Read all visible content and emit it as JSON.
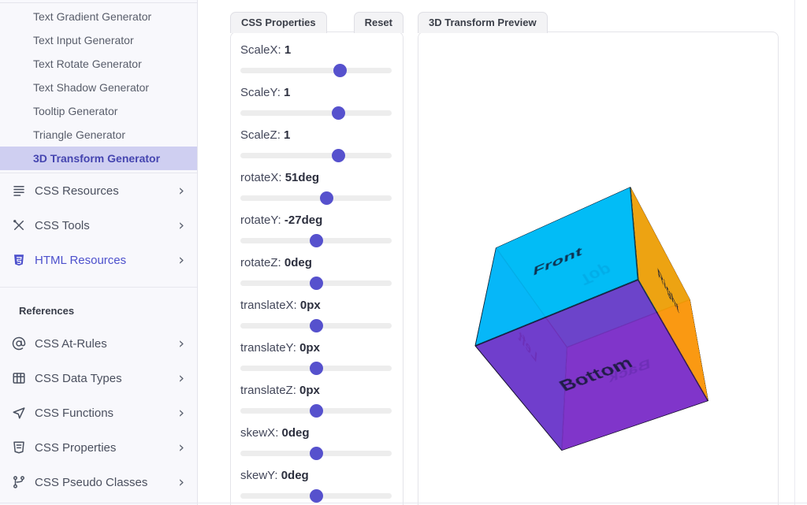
{
  "sidebar": {
    "top_links": [
      {
        "label": "Text Gradient Generator",
        "active": false
      },
      {
        "label": "Text Input Generator",
        "active": false
      },
      {
        "label": "Text Rotate Generator",
        "active": false
      },
      {
        "label": "Text Shadow Generator",
        "active": false
      },
      {
        "label": "Tooltip Generator",
        "active": false
      },
      {
        "label": "Triangle Generator",
        "active": false
      },
      {
        "label": "3D Transform Generator",
        "active": true
      }
    ],
    "categories": [
      {
        "label": "CSS Resources",
        "icon": "list-lines-icon",
        "accent": false
      },
      {
        "label": "CSS Tools",
        "icon": "tools-icon",
        "accent": false
      },
      {
        "label": "HTML Resources",
        "icon": "html5-shield-icon",
        "accent": true
      }
    ],
    "references_heading": "References",
    "references": [
      {
        "label": "CSS At-Rules",
        "icon": "at-sign-icon"
      },
      {
        "label": "CSS Data Types",
        "icon": "table-grid-icon"
      },
      {
        "label": "CSS Functions",
        "icon": "function-arrow-icon"
      },
      {
        "label": "CSS Properties",
        "icon": "css-shield-icon"
      },
      {
        "label": "CSS Pseudo Classes",
        "icon": "branch-icon"
      }
    ],
    "chevron": "›"
  },
  "properties_panel": {
    "tab_label": "CSS Properties",
    "reset_label": "Reset",
    "sliders": [
      {
        "name": "ScaleX",
        "value": "1",
        "percent": 66
      },
      {
        "name": "ScaleY",
        "value": "1",
        "percent": 65
      },
      {
        "name": "ScaleZ",
        "value": "1",
        "percent": 65
      },
      {
        "name": "rotateX",
        "value": "51deg",
        "percent": 57
      },
      {
        "name": "rotateY",
        "value": "-27deg",
        "percent": 50
      },
      {
        "name": "rotateZ",
        "value": "0deg",
        "percent": 50
      },
      {
        "name": "translateX",
        "value": "0px",
        "percent": 50
      },
      {
        "name": "translateY",
        "value": "0px",
        "percent": 50
      },
      {
        "name": "translateZ",
        "value": "0px",
        "percent": 50
      },
      {
        "name": "skewX",
        "value": "0deg",
        "percent": 50
      },
      {
        "name": "skewY",
        "value": "0deg",
        "percent": 50
      }
    ]
  },
  "preview_panel": {
    "tab_label": "3D Transform Preview",
    "transform": "rotateX(51deg) rotateY(-27deg)",
    "faces": [
      {
        "label": "Front",
        "position": "front",
        "color": "rgba(0,185,248,0.9)"
      },
      {
        "label": "Back",
        "position": "back",
        "color": "rgba(178,70,220,0.9)"
      },
      {
        "label": "Right",
        "position": "right",
        "color": "rgba(255,158,0,0.92)"
      },
      {
        "label": "Left",
        "position": "left",
        "color": "rgba(33,150,243,0.9)"
      },
      {
        "label": "Top",
        "position": "top",
        "color": "rgba(0,210,220,0.92)"
      },
      {
        "label": "Bottom",
        "position": "bottom",
        "color": "rgba(120,48,198,0.88)"
      }
    ]
  },
  "colors": {
    "accent": "#4545b0",
    "active_item_bg": "#cfcff1",
    "slider_thumb": "#5651cd",
    "slider_track": "#ededed",
    "sidebar_bg": "#f8f8fc",
    "tab_bg": "#f3f3f5"
  }
}
